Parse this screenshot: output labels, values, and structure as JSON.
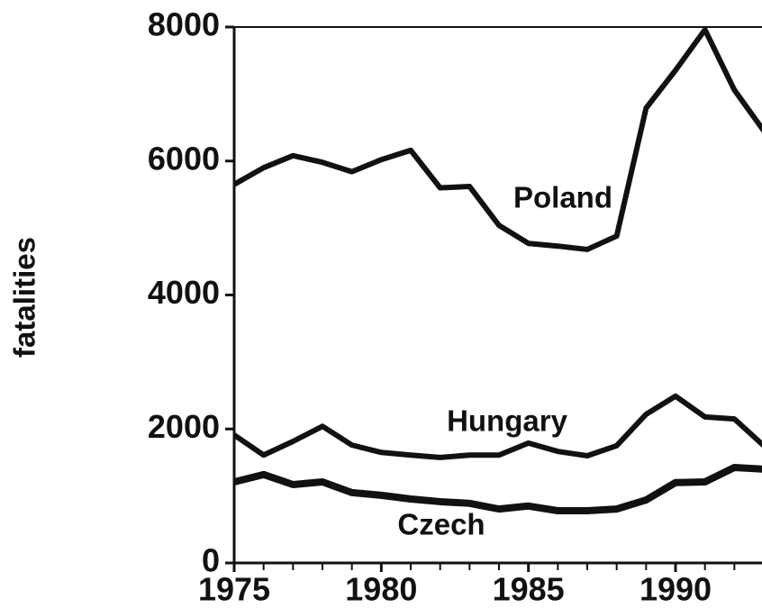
{
  "chart_data": {
    "type": "line",
    "y_label": "fatalities",
    "x": [
      1975,
      1976,
      1977,
      1978,
      1979,
      1980,
      1981,
      1982,
      1983,
      1984,
      1985,
      1986,
      1987,
      1988,
      1989,
      1990,
      1991,
      1992,
      1993
    ],
    "series": [
      {
        "name": "Poland",
        "color": "#111111",
        "values": [
          5650,
          5900,
          6080,
          5980,
          5840,
          6020,
          6160,
          5600,
          5620,
          5040,
          4770,
          4730,
          4680,
          4880,
          6790,
          7355,
          7960,
          7060,
          6450
        ]
      },
      {
        "name": "Hungary",
        "color": "#111111",
        "values": [
          1910,
          1610,
          1815,
          2040,
          1760,
          1650,
          1610,
          1575,
          1610,
          1610,
          1790,
          1665,
          1600,
          1750,
          2220,
          2490,
          2180,
          2150,
          1750
        ]
      },
      {
        "name": "Czech",
        "color": "#111111",
        "values": [
          1210,
          1320,
          1170,
          1210,
          1050,
          1010,
          955,
          915,
          890,
          805,
          850,
          780,
          780,
          805,
          940,
          1200,
          1210,
          1425,
          1400
        ]
      }
    ],
    "xlim": [
      1975,
      1993
    ],
    "ylim": [
      0,
      8000
    ],
    "xticks": [
      1975,
      1980,
      1985,
      1990
    ],
    "x_minor_ticks": [
      1976,
      1977,
      1978,
      1979,
      1981,
      1982,
      1983,
      1984,
      1986,
      1987,
      1988,
      1989,
      1991,
      1992
    ],
    "yticks": [
      0,
      2000,
      4000,
      6000,
      8000
    ]
  }
}
